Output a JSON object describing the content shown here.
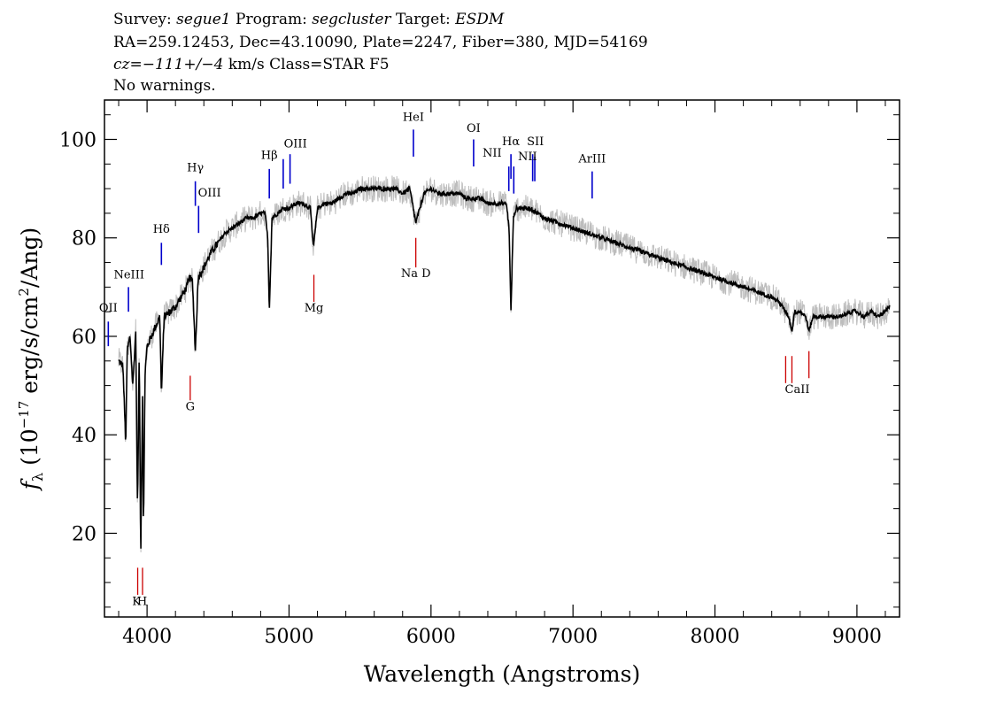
{
  "header": {
    "line1": {
      "survey_label": "Survey:",
      "survey": "segue1",
      "program_label": "Program:",
      "program": "segcluster",
      "target_label": "Target:",
      "target": "ESDM"
    },
    "line2": "RA=259.12453, Dec=43.10090, Plate=2247, Fiber=380, MJD=54169",
    "line3": {
      "cz": "cz=−111+/−4",
      "rest": " km/s Class=STAR F5"
    },
    "line4": "No warnings."
  },
  "chart_data": {
    "type": "line",
    "xlabel": "Wavelength (Angstroms)",
    "ylabel_prefix": "f",
    "ylabel_sub": "λ",
    "ylabel_main": " (10",
    "ylabel_exp": "−17",
    "ylabel_mid": " erg/s/cm",
    "ylabel_sq": "2",
    "ylabel_end": "/Ang)",
    "xlim": [
      3700,
      9300
    ],
    "ylim": [
      3,
      108
    ],
    "x_ticks": [
      4000,
      5000,
      6000,
      7000,
      8000,
      9000
    ],
    "x_tick_labels": [
      "4000",
      "5000",
      "6000",
      "7000",
      "8000",
      "9000"
    ],
    "y_ticks": [
      20,
      40,
      60,
      80,
      100
    ],
    "y_tick_labels": [
      "20",
      "40",
      "60",
      "80",
      "100"
    ],
    "series": [
      {
        "role": "flux",
        "color": "#000000",
        "x": [
          3800,
          3830,
          3850,
          3860,
          3880,
          3900,
          3920,
          3933,
          3945,
          3955,
          3968,
          3975,
          3985,
          4000,
          4030,
          4060,
          4090,
          4101,
          4120,
          4160,
          4200,
          4240,
          4280,
          4300,
          4320,
          4340,
          4360,
          4400,
          4450,
          4500,
          4550,
          4600,
          4650,
          4700,
          4750,
          4800,
          4830,
          4850,
          4861,
          4880,
          4920,
          4960,
          5000,
          5050,
          5100,
          5150,
          5172,
          5200,
          5250,
          5300,
          5350,
          5400,
          5450,
          5500,
          5550,
          5600,
          5650,
          5700,
          5750,
          5800,
          5850,
          5893,
          5950,
          6000,
          6050,
          6100,
          6150,
          6200,
          6250,
          6300,
          6350,
          6400,
          6450,
          6500,
          6530,
          6550,
          6563,
          6580,
          6600,
          6650,
          6700,
          6800,
          6900,
          7000,
          7100,
          7200,
          7300,
          7400,
          7500,
          7600,
          7700,
          7800,
          7900,
          8000,
          8100,
          8200,
          8300,
          8400,
          8450,
          8498,
          8520,
          8542,
          8560,
          8600,
          8640,
          8662,
          8690,
          8750,
          8800,
          8850,
          8900,
          8950,
          9000,
          9050,
          9100,
          9150,
          9200,
          9230
        ],
        "y": [
          55,
          54,
          38,
          57,
          60,
          50,
          61,
          24,
          58,
          15,
          48,
          19,
          52,
          58,
          60,
          62,
          64,
          48,
          64,
          65,
          66,
          68,
          70,
          72,
          71,
          57,
          72,
          74,
          77,
          79,
          81,
          82,
          83,
          84,
          84,
          85,
          85,
          80,
          65,
          84,
          85,
          86,
          86,
          87,
          87,
          86,
          78,
          86,
          87,
          87,
          88,
          89,
          89,
          90,
          90,
          90,
          90,
          90,
          90,
          89,
          90,
          83,
          89,
          90,
          89,
          89,
          89,
          89,
          88,
          88,
          88,
          87,
          87,
          87,
          87,
          82,
          65,
          84,
          86,
          86,
          86,
          84,
          83,
          82,
          81,
          80,
          79,
          78,
          77,
          76,
          75,
          74,
          73,
          72,
          71,
          70,
          69,
          68,
          67,
          65,
          64,
          61,
          65,
          65,
          64,
          61,
          64,
          64,
          64,
          64,
          64,
          65,
          65,
          64,
          65,
          64,
          65,
          66
        ]
      }
    ],
    "lines_emission": [
      {
        "label": "OII",
        "x": 3727,
        "y_top": 63,
        "y_bot": 58
      },
      {
        "label": "NeIII",
        "x": 3869,
        "y_top": 70,
        "y_bot": 65
      },
      {
        "label": "Hδ",
        "x": 4101,
        "y_top": 79,
        "y_bot": 74.5
      },
      {
        "label": "Hγ",
        "x": 4340,
        "y_top": 91.5,
        "y_bot": 86.5
      },
      {
        "label": "OIII",
        "x": 4363,
        "y_top": 86.5,
        "y_bot": 81
      },
      {
        "label": "Hβ",
        "x": 4861,
        "y_top": 94,
        "y_bot": 88
      },
      {
        "label": "OIII",
        "x": 4959,
        "y_top": 96,
        "y_bot": 90
      },
      {
        "label": "OIII",
        "x": 5007,
        "y_top": 97,
        "y_bot": 91
      },
      {
        "label": "HeI",
        "x": 5876,
        "y_top": 102,
        "y_bot": 96.5
      },
      {
        "label": "OI",
        "x": 6300,
        "y_top": 100,
        "y_bot": 94.5
      },
      {
        "label": "NII",
        "x": 6548,
        "y_top": 94.5,
        "y_bot": 89.5
      },
      {
        "label": "Hα",
        "x": 6563,
        "y_top": 97,
        "y_bot": 92
      },
      {
        "label": "NII",
        "x": 6583,
        "y_top": 94.5,
        "y_bot": 89
      },
      {
        "label": "SII",
        "x": 6716,
        "y_top": 97,
        "y_bot": 91.5
      },
      {
        "label": "SII",
        "x": 6731,
        "y_top": 96.5,
        "y_bot": 91.5
      },
      {
        "label": "ArIII",
        "x": 7135,
        "y_top": 93.5,
        "y_bot": 88
      }
    ],
    "lines_absorption": [
      {
        "label": "K",
        "x": 3934,
        "y_top": 13,
        "y_bot": 7.5
      },
      {
        "label": "H",
        "x": 3968,
        "y_top": 13,
        "y_bot": 7.5
      },
      {
        "label": "G",
        "x": 4304,
        "y_top": 52,
        "y_bot": 47
      },
      {
        "label": "Mg",
        "x": 5175,
        "y_top": 72.5,
        "y_bot": 67
      },
      {
        "label": "Na D",
        "x": 5893,
        "y_top": 80,
        "y_bot": 74
      },
      {
        "label": "CaII",
        "x": 8498,
        "y_top": 56,
        "y_bot": 50.5
      },
      {
        "label": "CaII",
        "x": 8542,
        "y_top": 56,
        "y_bot": 50.5
      },
      {
        "label": "CaII",
        "x": 8662,
        "y_top": 57,
        "y_bot": 51.5
      }
    ],
    "labels_emission": [
      {
        "text": "OII",
        "x": 3727,
        "y": 65
      },
      {
        "text": "NeIII",
        "x": 3873,
        "y": 71.8
      },
      {
        "text": "Hδ",
        "x": 4101,
        "y": 81
      },
      {
        "text": "Hγ",
        "x": 4340,
        "y": 93.5
      },
      {
        "text": "OIII",
        "x": 4440,
        "y": 88.4
      },
      {
        "text": "Hβ",
        "x": 4861,
        "y": 96
      },
      {
        "text": "OIII",
        "x": 5045,
        "y": 98.4
      },
      {
        "text": "HeI",
        "x": 5876,
        "y": 103.8
      },
      {
        "text": "OI",
        "x": 6300,
        "y": 101.5
      },
      {
        "text": "NII",
        "x": 6430,
        "y": 96.5
      },
      {
        "text": "Hα",
        "x": 6563,
        "y": 98.8
      },
      {
        "text": "SII",
        "x": 6735,
        "y": 98.8
      },
      {
        "text": "NII",
        "x": 6680,
        "y": 95.8
      },
      {
        "text": "ArIII",
        "x": 7135,
        "y": 95.3
      }
    ],
    "labels_absorption": [
      {
        "text": "K",
        "x": 3925,
        "y": 5.4
      },
      {
        "text": "H",
        "x": 3965,
        "y": 5.4
      },
      {
        "text": "G",
        "x": 4304,
        "y": 45
      },
      {
        "text": "Mg",
        "x": 5175,
        "y": 65
      },
      {
        "text": "Na D",
        "x": 5893,
        "y": 72
      },
      {
        "text": "CaII",
        "x": 8580,
        "y": 48.5
      }
    ]
  }
}
